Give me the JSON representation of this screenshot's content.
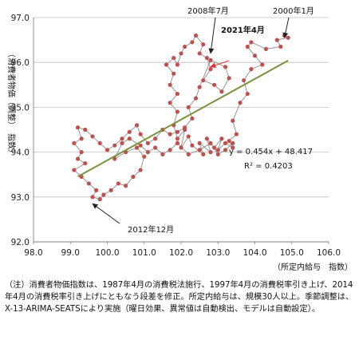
{
  "chart_data": {
    "type": "scatter",
    "title": "",
    "xlabel": "（所定内給与　指数）",
    "ylabel": "（消費者物価（調整）　指数）",
    "xlim": [
      98.0,
      106.0
    ],
    "ylim": [
      92.0,
      97.0
    ],
    "xticks": [
      "98.0",
      "99.0",
      "100.0",
      "101.0",
      "102.0",
      "103.0",
      "104.0",
      "105.0",
      "106.0"
    ],
    "yticks": [
      "92.0",
      "93.0",
      "94.0",
      "95.0",
      "96.0",
      "97.0"
    ],
    "grid": "horizontal",
    "connected": true,
    "series": [
      {
        "color": "#c0504d",
        "points": [
          [
            104.8,
            96.6
          ],
          [
            104.9,
            96.55
          ],
          [
            104.6,
            96.5
          ],
          [
            104.7,
            96.35
          ],
          [
            104.3,
            96.3
          ],
          [
            103.9,
            96.45
          ],
          [
            103.8,
            96.35
          ],
          [
            104.0,
            96.15
          ],
          [
            104.2,
            95.95
          ],
          [
            103.9,
            95.85
          ],
          [
            103.7,
            95.6
          ],
          [
            103.8,
            95.3
          ],
          [
            103.6,
            95.1
          ],
          [
            103.4,
            94.7
          ],
          [
            103.5,
            94.4
          ],
          [
            103.3,
            94.25
          ],
          [
            103.4,
            94.1
          ],
          [
            103.2,
            94.2
          ],
          [
            103.0,
            94.05
          ],
          [
            103.1,
            94.3
          ],
          [
            102.9,
            94.1
          ],
          [
            102.7,
            94.3
          ],
          [
            102.8,
            94.0
          ],
          [
            102.5,
            94.2
          ],
          [
            102.6,
            93.95
          ],
          [
            102.3,
            94.15
          ],
          [
            102.2,
            94.35
          ],
          [
            102.0,
            94.1
          ],
          [
            102.1,
            94.5
          ],
          [
            101.9,
            94.3
          ],
          [
            101.8,
            94.6
          ],
          [
            101.9,
            94.9
          ],
          [
            101.7,
            95.1
          ],
          [
            101.9,
            95.3
          ],
          [
            101.7,
            95.5
          ],
          [
            101.8,
            95.75
          ],
          [
            101.6,
            95.95
          ],
          [
            101.8,
            96.1
          ],
          [
            101.9,
            95.95
          ],
          [
            102.0,
            96.2
          ],
          [
            102.1,
            96.35
          ],
          [
            102.3,
            96.45
          ],
          [
            102.4,
            96.6
          ],
          [
            102.6,
            96.4
          ],
          [
            102.5,
            96.2
          ],
          [
            102.7,
            96.1
          ],
          [
            102.8,
            95.85
          ],
          [
            102.6,
            95.6
          ],
          [
            102.9,
            95.5
          ],
          [
            103.1,
            95.35
          ],
          [
            103.3,
            95.65
          ],
          [
            103.2,
            95.9
          ],
          [
            102.8,
            96.05
          ],
          [
            102.5,
            95.45
          ],
          [
            102.4,
            95.2
          ],
          [
            102.2,
            95.0
          ],
          [
            102.3,
            94.75
          ],
          [
            102.1,
            94.55
          ],
          [
            101.9,
            94.45
          ],
          [
            101.7,
            94.4
          ],
          [
            101.5,
            94.5
          ],
          [
            101.3,
            94.3
          ],
          [
            101.1,
            94.2
          ],
          [
            100.9,
            94.4
          ],
          [
            100.8,
            94.6
          ],
          [
            100.6,
            94.45
          ],
          [
            100.4,
            94.3
          ],
          [
            100.2,
            94.15
          ],
          [
            100.0,
            94.05
          ],
          [
            99.8,
            94.2
          ],
          [
            99.6,
            94.35
          ],
          [
            99.4,
            94.5
          ],
          [
            99.2,
            94.55
          ],
          [
            99.3,
            94.3
          ],
          [
            99.1,
            94.2
          ],
          [
            99.3,
            94.0
          ],
          [
            99.2,
            93.85
          ],
          [
            99.4,
            93.75
          ],
          [
            99.1,
            93.6
          ],
          [
            99.3,
            93.45
          ],
          [
            99.5,
            93.3
          ],
          [
            99.7,
            93.15
          ],
          [
            99.6,
            93.0
          ],
          [
            99.8,
            92.95
          ],
          [
            99.9,
            93.05
          ],
          [
            100.1,
            93.15
          ],
          [
            100.3,
            93.3
          ],
          [
            100.5,
            93.25
          ],
          [
            100.7,
            93.45
          ],
          [
            100.9,
            93.6
          ],
          [
            101.0,
            93.9
          ],
          [
            100.8,
            94.1
          ],
          [
            100.5,
            94.0
          ],
          [
            100.2,
            93.85
          ],
          [
            100.4,
            94.2
          ],
          [
            100.6,
            94.3
          ],
          [
            100.9,
            94.15
          ],
          [
            101.1,
            94.0
          ],
          [
            101.3,
            94.1
          ],
          [
            101.5,
            93.95
          ],
          [
            101.7,
            94.05
          ],
          [
            101.9,
            94.2
          ],
          [
            102.2,
            93.95
          ],
          [
            102.5,
            94.05
          ],
          [
            102.8,
            94.2
          ],
          [
            103.0,
            93.95
          ],
          [
            103.2,
            94.05
          ],
          [
            103.4,
            94.2
          ]
        ]
      }
    ],
    "trendline": {
      "color": "#77933c",
      "equation": "y = 0.454x + 48.417",
      "r2": "R² = 0.4203",
      "slope": 0.454,
      "intercept": 48.417,
      "x_range": [
        99.2,
        104.9
      ]
    },
    "annotations": [
      {
        "text": "2008年7月",
        "point": [
          102.8,
          96.2
        ]
      },
      {
        "text": "2000年1月",
        "point": [
          104.8,
          96.55
        ]
      },
      {
        "text": "2021年4月",
        "point": [
          102.8,
          95.9
        ],
        "color": "#e03030"
      },
      {
        "text": "2012年12月",
        "point": [
          99.6,
          92.85
        ]
      }
    ]
  },
  "note": "（注）消費者物価指数は、1987年4月の消費税法施行、1997年4月の消費税率引き上げ、2014年4月の消費税率引き上げにともなう段差を修正。所定内給与は、規模30人以上。季節調整は、X-13-ARIMA-SEATSにより実施（曜日効果、異常値は自動検出、モデルは自動設定）。"
}
